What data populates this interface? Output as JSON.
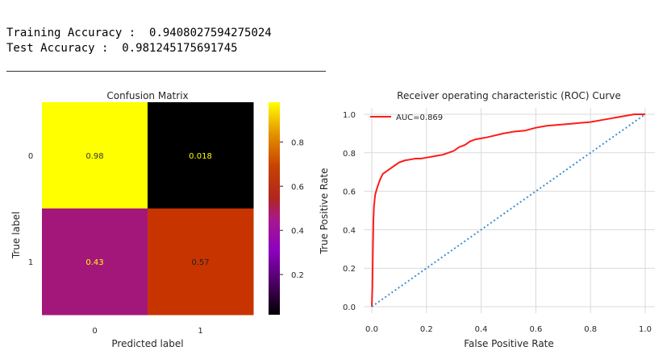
{
  "console": {
    "line1_label": "Training Accuracy :",
    "line1_value": "0.9408027594275024",
    "line2_label": "Test Accuracy :",
    "line2_value": "0.981245175691745"
  },
  "colors": {
    "roc_line": "#ff1a1a",
    "chance_line": "#3d8fd1",
    "grid": "#d9d9d9",
    "axis_text": "#262626"
  },
  "chart_data": [
    {
      "type": "heatmap",
      "title": "Confusion Matrix",
      "xlabel": "Predicted label",
      "ylabel": "True label",
      "x_ticks": [
        "0",
        "1"
      ],
      "y_ticks": [
        "0",
        "1"
      ],
      "cells": [
        {
          "row": 0,
          "col": 0,
          "label": "0.98",
          "value": 0.98,
          "color": "#ffff00",
          "text_color": "#333333"
        },
        {
          "row": 0,
          "col": 1,
          "label": "0.018",
          "value": 0.018,
          "color": "#000000",
          "text_color": "#ffff00"
        },
        {
          "row": 1,
          "col": 0,
          "label": "0.43",
          "value": 0.43,
          "color": "#a3177a",
          "text_color": "#ffff00"
        },
        {
          "row": 1,
          "col": 1,
          "label": "0.57",
          "value": 0.57,
          "color": "#c83400",
          "text_color": "#222222"
        }
      ],
      "colorbar": {
        "colormap": "gnuplot",
        "range": [
          0.018,
          0.98
        ],
        "ticks": [
          0.2,
          0.4,
          0.6,
          0.8
        ],
        "tick_labels": [
          "0.2",
          "0.4",
          "0.6",
          "0.8"
        ]
      }
    },
    {
      "type": "line",
      "title": "Receiver operating characteristic (ROC) Curve",
      "xlabel": "False Positive Rate",
      "ylabel": "True Positive Rate",
      "xlim": [
        0,
        1
      ],
      "ylim": [
        0,
        1
      ],
      "grid": true,
      "legend_position": "top-left",
      "x_ticks": [
        0.0,
        0.2,
        0.4,
        0.6,
        0.8,
        1.0
      ],
      "x_tick_labels": [
        "0.0",
        "0.2",
        "0.4",
        "0.6",
        "0.8",
        "1.0"
      ],
      "y_ticks": [
        0.0,
        0.2,
        0.4,
        0.6,
        0.8,
        1.0
      ],
      "y_tick_labels": [
        "0.0",
        "0.2",
        "0.4",
        "0.6",
        "0.8",
        "1.0"
      ],
      "series": [
        {
          "name": "AUC=0.869",
          "style": "solid",
          "color": "#ff1a1a",
          "x": [
            0.0,
            0.002,
            0.004,
            0.006,
            0.008,
            0.012,
            0.016,
            0.02,
            0.03,
            0.04,
            0.05,
            0.06,
            0.07,
            0.08,
            0.1,
            0.12,
            0.14,
            0.16,
            0.18,
            0.2,
            0.22,
            0.24,
            0.26,
            0.28,
            0.3,
            0.32,
            0.34,
            0.36,
            0.38,
            0.4,
            0.42,
            0.45,
            0.48,
            0.52,
            0.56,
            0.6,
            0.64,
            0.68,
            0.72,
            0.76,
            0.8,
            0.84,
            0.88,
            0.92,
            0.96,
            1.0
          ],
          "y": [
            0.0,
            0.1,
            0.3,
            0.45,
            0.52,
            0.58,
            0.6,
            0.62,
            0.66,
            0.69,
            0.7,
            0.71,
            0.72,
            0.73,
            0.75,
            0.76,
            0.765,
            0.77,
            0.77,
            0.775,
            0.78,
            0.785,
            0.79,
            0.8,
            0.81,
            0.83,
            0.84,
            0.86,
            0.87,
            0.875,
            0.88,
            0.89,
            0.9,
            0.91,
            0.915,
            0.93,
            0.94,
            0.945,
            0.95,
            0.955,
            0.96,
            0.97,
            0.98,
            0.99,
            1.0,
            1.0
          ]
        },
        {
          "name": "",
          "style": "dotted",
          "color": "#3d8fd1",
          "x": [
            0.0,
            1.0
          ],
          "y": [
            0.0,
            1.0
          ]
        }
      ]
    }
  ]
}
